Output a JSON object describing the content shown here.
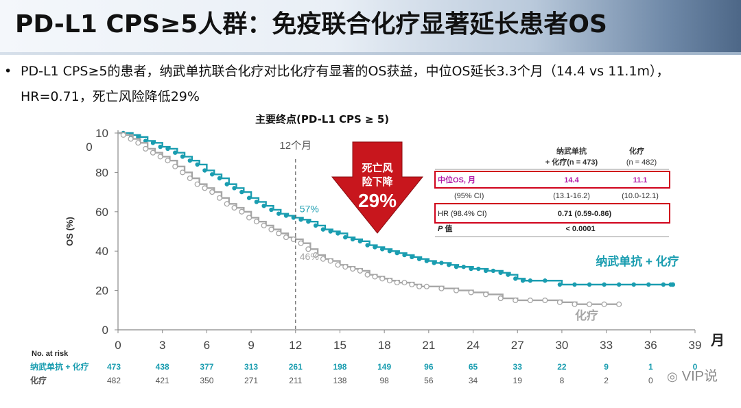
{
  "slide": {
    "title": "PD-L1 CPS≥5人群：免疫联合化疗显著延长患者OS",
    "bullet": "PD-L1 CPS≥5的患者，纳武单抗联合化疗对比化疗有显著的OS获益，中位OS延长3.3个月（14.4 vs 11.1m），HR=0.71，死亡风险降低29%",
    "bullet_icon": "•"
  },
  "callout": {
    "text_line1": "死亡风",
    "text_line2": "险下降",
    "value": "29%",
    "color": "#c8161d"
  },
  "stats_table": {
    "header_arm1_line1": "纳武单抗",
    "header_arm1_line2": "+ 化疗(n = 473)",
    "header_arm2_line1": "化疗",
    "header_arm2_line2": "(n = 482)",
    "median_label": "中位OS, 月",
    "median_arm1": "14.4",
    "median_arm2": "11.1",
    "ci_label": "(95% CI)",
    "ci_arm1": "(13.1-16.2)",
    "ci_arm2": "(10.0-12.1)",
    "hr_label": "HR (98.4% CI)",
    "hr_value": "0.71 (0.59-0.86)",
    "p_label_italic": "P",
    "p_label_rest": " 值",
    "p_value": "< 0.0001"
  },
  "risk_table": {
    "header": "No. at risk",
    "rows": [
      {
        "label": "纳武单抗 + 化疗",
        "color": "#1a9db0",
        "values": [
          "473",
          "438",
          "377",
          "313",
          "261",
          "198",
          "149",
          "96",
          "65",
          "33",
          "22",
          "9",
          "1",
          "0"
        ]
      },
      {
        "label": "化疗",
        "color": "#555555",
        "values": [
          "482",
          "421",
          "350",
          "271",
          "211",
          "138",
          "98",
          "56",
          "34",
          "19",
          "8",
          "2",
          "0"
        ]
      }
    ]
  },
  "watermark": "VIP说",
  "chart_data": {
    "type": "line",
    "title": "主要终点(PD-L1 CPS ≥ 5)",
    "xlabel": "月",
    "ylabel": "OS (%)",
    "xlim": [
      0,
      39
    ],
    "ylim": [
      0,
      100
    ],
    "xticks": [
      "0",
      "3",
      "6",
      "9",
      "12",
      "15",
      "18",
      "21",
      "24",
      "27",
      "30",
      "33",
      "36",
      "39"
    ],
    "yticks": [
      "0",
      "20",
      "40",
      "60",
      "80",
      "10\n0"
    ],
    "vline": {
      "x": 12,
      "label": "12个月"
    },
    "annotations": [
      {
        "series": "纳武单抗 + 化疗",
        "x": 12,
        "y": 57,
        "text": "57%"
      },
      {
        "series": "化疗",
        "x": 12,
        "y": 46,
        "text": "46%"
      }
    ],
    "series": [
      {
        "name": "纳武单抗 + 化疗",
        "color": "#1a9db0",
        "x": [
          0,
          0.5,
          1,
          1.5,
          2,
          2.5,
          3,
          3.5,
          4,
          4.5,
          5,
          5.5,
          6,
          6.5,
          7,
          7.5,
          8,
          8.5,
          9,
          9.5,
          10,
          10.5,
          11,
          11.5,
          12,
          12.5,
          13,
          13.5,
          14,
          14.5,
          15,
          15.5,
          16,
          16.5,
          17,
          17.5,
          18,
          18.5,
          19,
          19.5,
          20,
          20.5,
          21,
          21.5,
          22,
          22.5,
          23,
          23.5,
          24,
          24.5,
          25,
          25.5,
          26,
          26.5,
          27,
          27.5,
          28,
          29,
          30,
          31,
          32,
          33,
          34,
          35,
          36,
          37,
          37.5
        ],
        "y": [
          100,
          100,
          99,
          98,
          96,
          95,
          93,
          92,
          90,
          88,
          86,
          84,
          81,
          79,
          77,
          74,
          72,
          70,
          67,
          65,
          63,
          61,
          59,
          58,
          57,
          56,
          55,
          53,
          51,
          50,
          49,
          47,
          46,
          45,
          43,
          42,
          41,
          40,
          39,
          38,
          37,
          36,
          35,
          34,
          34,
          33,
          32,
          32,
          31,
          31,
          30,
          30,
          29,
          28,
          26,
          25,
          25,
          25,
          23,
          23,
          23,
          23,
          23,
          23,
          23,
          23,
          23
        ]
      },
      {
        "name": "化疗",
        "color": "#a6a6a6",
        "x": [
          0,
          0.5,
          1,
          1.5,
          2,
          2.5,
          3,
          3.5,
          4,
          4.5,
          5,
          5.5,
          6,
          6.5,
          7,
          7.5,
          8,
          8.5,
          9,
          9.5,
          10,
          10.5,
          11,
          11.5,
          12,
          12.5,
          13,
          13.5,
          14,
          14.5,
          15,
          15.5,
          16,
          16.5,
          17,
          17.5,
          18,
          18.5,
          19,
          19.5,
          20,
          20.5,
          21,
          22,
          23,
          24,
          25,
          26,
          27,
          28,
          29,
          30,
          31,
          32,
          33,
          34
        ],
        "y": [
          100,
          99,
          97,
          95,
          92,
          90,
          88,
          86,
          83,
          80,
          77,
          74,
          72,
          70,
          67,
          64,
          62,
          60,
          57,
          55,
          53,
          51,
          49,
          47,
          46,
          44,
          41,
          38,
          36,
          35,
          33,
          32,
          31,
          30,
          28,
          27,
          26,
          25,
          24,
          24,
          23,
          22,
          22,
          21,
          20,
          19,
          18,
          16,
          15,
          15,
          15,
          14,
          13,
          13,
          13,
          13
        ]
      }
    ]
  }
}
